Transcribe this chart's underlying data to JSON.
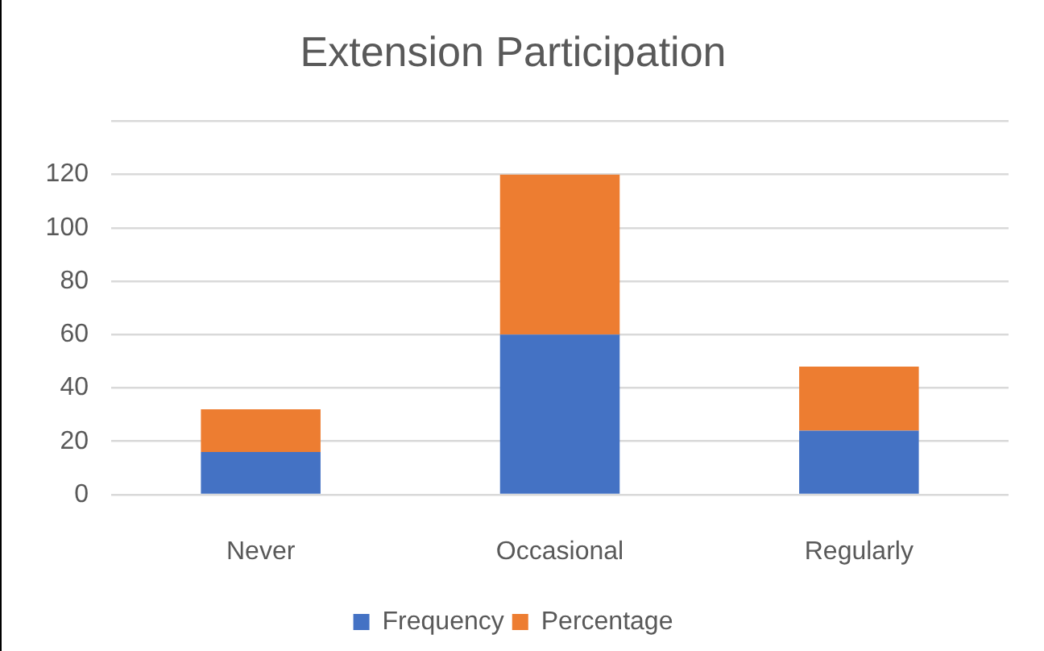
{
  "chart_data": {
    "type": "bar",
    "title": "Extension Participation",
    "categories": [
      "Never",
      "Occasional",
      "Regularly"
    ],
    "series": [
      {
        "name": "Frequency",
        "color": "#4472c4",
        "values": [
          16,
          60,
          24
        ]
      },
      {
        "name": "Percentage",
        "color": "#ed7d31",
        "values": [
          16,
          60,
          24
        ]
      }
    ],
    "stacked": true,
    "ylim": [
      0,
      140
    ],
    "yticks": [
      0,
      20,
      40,
      60,
      80,
      100,
      120,
      {
        "value": 140,
        "label": null
      }
    ],
    "grid": "y",
    "legend": "bottom"
  }
}
